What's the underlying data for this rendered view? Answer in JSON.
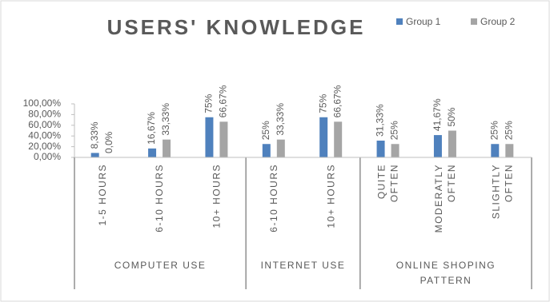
{
  "chart_data": {
    "type": "bar",
    "title": "USERS' KNOWLEDGE",
    "groups": [
      {
        "label": [
          "COMPUTER USE"
        ],
        "categories": [
          [
            "1-5 HOURS"
          ],
          [
            "6-10 HOURS"
          ],
          [
            "10+ HOURS"
          ]
        ]
      },
      {
        "label": [
          "INTERNET USE"
        ],
        "categories": [
          [
            "6-10 HOURS"
          ],
          [
            "10+ HOURS"
          ]
        ]
      },
      {
        "label": [
          "ONLINE SHOPING",
          "PATTERN"
        ],
        "categories": [
          [
            "QUITE",
            "OFTEN"
          ],
          [
            "MODERATLY",
            "OFTEN"
          ],
          [
            "SLIGHTLY",
            "OFTEN"
          ]
        ]
      }
    ],
    "series": [
      {
        "name": "Group 1",
        "color": "#4f81bd",
        "values": [
          8.33,
          16.67,
          75,
          25,
          75,
          31.33,
          41.67,
          25
        ],
        "value_labels": [
          "8,33%",
          "16,67%",
          "75%",
          "25%",
          "75%",
          "31,33%",
          "41,67%",
          "25%"
        ]
      },
      {
        "name": "Group 2",
        "color": "#a5a5a5",
        "values": [
          0,
          33.33,
          66.67,
          33.33,
          66.67,
          25,
          50,
          25
        ],
        "value_labels": [
          "0,0%",
          "33,33%",
          "66,67%",
          "33,33%",
          "66,67%",
          "25%",
          "50%",
          "25%"
        ]
      }
    ],
    "ylim": [
      0,
      100
    ],
    "yticks": [
      {
        "value": 0,
        "label": "0,00%"
      },
      {
        "value": 20,
        "label": "20,00%"
      },
      {
        "value": 40,
        "label": "40,00%"
      },
      {
        "value": 60,
        "label": "60,00%"
      },
      {
        "value": 80,
        "label": "80,00%"
      },
      {
        "value": 100,
        "label": "100,00%"
      }
    ],
    "grid": false,
    "legend": "top-right"
  }
}
